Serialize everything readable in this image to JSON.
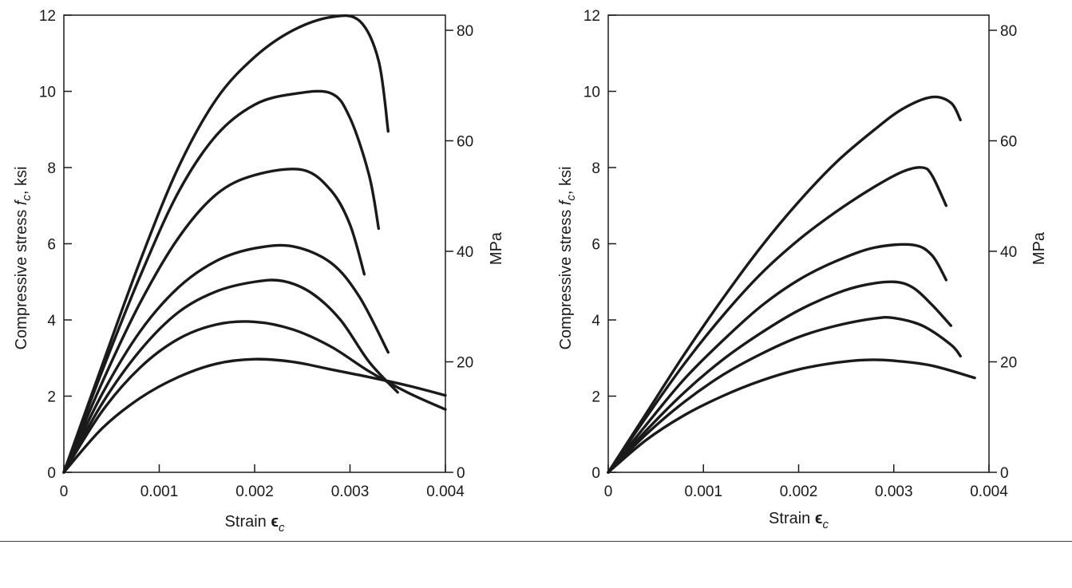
{
  "chart_data": [
    {
      "type": "line",
      "xlabel": "Strain",
      "xlabel_symbol": "ϵ",
      "xlabel_subscript": "c",
      "ylabel": "Compressive stress",
      "ylabel_symbol": "f",
      "ylabel_subscript": "c",
      "ylabel_unit": ", ksi",
      "y2label": "MPa",
      "xlim": [
        0,
        0.004
      ],
      "ylim": [
        0,
        12
      ],
      "y2lim": [
        0,
        82.74
      ],
      "xticks": [
        "0",
        "0.001",
        "0.002",
        "0.003",
        "0.004"
      ],
      "yticks": [
        "0",
        "2",
        "4",
        "6",
        "8",
        "10",
        "12"
      ],
      "y2ticks": [
        "0",
        "20",
        "40",
        "60",
        "80"
      ],
      "series": [
        {
          "points": [
            [
              0,
              0
            ],
            [
              0.0004,
              1.15
            ],
            [
              0.0008,
              1.95
            ],
            [
              0.0012,
              2.5
            ],
            [
              0.0016,
              2.85
            ],
            [
              0.002,
              2.97
            ],
            [
              0.0024,
              2.9
            ],
            [
              0.0028,
              2.7
            ],
            [
              0.0032,
              2.5
            ],
            [
              0.0036,
              2.28
            ],
            [
              0.004,
              2.02
            ]
          ]
        },
        {
          "points": [
            [
              0,
              0
            ],
            [
              0.0004,
              1.6
            ],
            [
              0.0008,
              2.75
            ],
            [
              0.0012,
              3.5
            ],
            [
              0.0016,
              3.88
            ],
            [
              0.002,
              3.95
            ],
            [
              0.0024,
              3.75
            ],
            [
              0.0028,
              3.3
            ],
            [
              0.0032,
              2.65
            ],
            [
              0.0036,
              2.1
            ],
            [
              0.004,
              1.65
            ]
          ]
        },
        {
          "points": [
            [
              0,
              0
            ],
            [
              0.0004,
              1.8
            ],
            [
              0.0008,
              3.2
            ],
            [
              0.0012,
              4.2
            ],
            [
              0.0016,
              4.75
            ],
            [
              0.002,
              5.0
            ],
            [
              0.0023,
              5.02
            ],
            [
              0.0026,
              4.7
            ],
            [
              0.0029,
              4.0
            ],
            [
              0.0032,
              2.9
            ],
            [
              0.0035,
              2.1
            ]
          ]
        },
        {
          "points": [
            [
              0,
              0
            ],
            [
              0.0004,
              2.05
            ],
            [
              0.0008,
              3.7
            ],
            [
              0.0012,
              4.85
            ],
            [
              0.0016,
              5.55
            ],
            [
              0.002,
              5.88
            ],
            [
              0.0024,
              5.93
            ],
            [
              0.0028,
              5.5
            ],
            [
              0.0031,
              4.6
            ],
            [
              0.0034,
              3.15
            ]
          ]
        },
        {
          "points": [
            [
              0,
              0
            ],
            [
              0.0004,
              2.35
            ],
            [
              0.0008,
              4.45
            ],
            [
              0.0012,
              6.15
            ],
            [
              0.0016,
              7.3
            ],
            [
              0.002,
              7.8
            ],
            [
              0.0025,
              7.94
            ],
            [
              0.0028,
              7.4
            ],
            [
              0.003,
              6.5
            ],
            [
              0.00315,
              5.2
            ]
          ]
        },
        {
          "points": [
            [
              0,
              0
            ],
            [
              0.0004,
              2.65
            ],
            [
              0.0008,
              5.15
            ],
            [
              0.0012,
              7.35
            ],
            [
              0.0016,
              8.85
            ],
            [
              0.002,
              9.65
            ],
            [
              0.0024,
              9.93
            ],
            [
              0.0028,
              9.95
            ],
            [
              0.003,
              9.3
            ],
            [
              0.0032,
              7.8
            ],
            [
              0.0033,
              6.4
            ]
          ]
        },
        {
          "points": [
            [
              0,
              0
            ],
            [
              0.0004,
              2.8
            ],
            [
              0.0008,
              5.55
            ],
            [
              0.0012,
              8.0
            ],
            [
              0.0016,
              9.8
            ],
            [
              0.002,
              10.9
            ],
            [
              0.0024,
              11.6
            ],
            [
              0.0028,
              11.95
            ],
            [
              0.0031,
              11.85
            ],
            [
              0.0033,
              10.8
            ],
            [
              0.0034,
              8.95
            ]
          ]
        }
      ]
    },
    {
      "type": "line",
      "xlabel": "Strain",
      "xlabel_symbol": "ϵ",
      "xlabel_subscript": "c",
      "ylabel": "Compressive stress",
      "ylabel_symbol": "f",
      "ylabel_subscript": "c",
      "ylabel_unit": ", ksi",
      "y2label": "MPa",
      "xlim": [
        0,
        0.004
      ],
      "ylim": [
        0,
        12
      ],
      "y2lim": [
        0,
        82.74
      ],
      "xticks": [
        "0",
        "0.001",
        "0.002",
        "0.003",
        "0.004"
      ],
      "yticks": [
        "0",
        "2",
        "4",
        "6",
        "8",
        "10",
        "12"
      ],
      "y2ticks": [
        "0",
        "20",
        "40",
        "60",
        "80"
      ],
      "series": [
        {
          "points": [
            [
              0,
              0
            ],
            [
              0.0004,
              0.85
            ],
            [
              0.0008,
              1.5
            ],
            [
              0.0012,
              2.0
            ],
            [
              0.0016,
              2.4
            ],
            [
              0.002,
              2.7
            ],
            [
              0.0024,
              2.88
            ],
            [
              0.0027,
              2.95
            ],
            [
              0.003,
              2.93
            ],
            [
              0.0034,
              2.8
            ],
            [
              0.00385,
              2.48
            ]
          ]
        },
        {
          "points": [
            [
              0,
              0
            ],
            [
              0.0004,
              1.0
            ],
            [
              0.0008,
              1.85
            ],
            [
              0.0012,
              2.55
            ],
            [
              0.0016,
              3.1
            ],
            [
              0.002,
              3.55
            ],
            [
              0.0024,
              3.85
            ],
            [
              0.0028,
              4.04
            ],
            [
              0.003,
              4.05
            ],
            [
              0.0033,
              3.85
            ],
            [
              0.0036,
              3.35
            ],
            [
              0.0037,
              3.05
            ]
          ]
        },
        {
          "points": [
            [
              0,
              0
            ],
            [
              0.0004,
              1.1
            ],
            [
              0.0008,
              2.1
            ],
            [
              0.0012,
              2.95
            ],
            [
              0.0016,
              3.65
            ],
            [
              0.002,
              4.25
            ],
            [
              0.0024,
              4.7
            ],
            [
              0.0027,
              4.92
            ],
            [
              0.003,
              5.0
            ],
            [
              0.0032,
              4.85
            ],
            [
              0.0034,
              4.4
            ],
            [
              0.0036,
              3.85
            ]
          ]
        },
        {
          "points": [
            [
              0,
              0
            ],
            [
              0.0004,
              1.25
            ],
            [
              0.0008,
              2.45
            ],
            [
              0.0012,
              3.45
            ],
            [
              0.0016,
              4.35
            ],
            [
              0.002,
              5.05
            ],
            [
              0.0024,
              5.55
            ],
            [
              0.0028,
              5.9
            ],
            [
              0.0032,
              5.97
            ],
            [
              0.0034,
              5.7
            ],
            [
              0.00355,
              5.05
            ]
          ]
        },
        {
          "points": [
            [
              0,
              0
            ],
            [
              0.0004,
              1.45
            ],
            [
              0.0008,
              2.85
            ],
            [
              0.0012,
              4.1
            ],
            [
              0.0016,
              5.2
            ],
            [
              0.002,
              6.1
            ],
            [
              0.0024,
              6.85
            ],
            [
              0.0028,
              7.5
            ],
            [
              0.0031,
              7.9
            ],
            [
              0.0033,
              8.0
            ],
            [
              0.0034,
              7.8
            ],
            [
              0.00355,
              7.0
            ]
          ]
        },
        {
          "points": [
            [
              0,
              0
            ],
            [
              0.0004,
              1.55
            ],
            [
              0.0008,
              3.1
            ],
            [
              0.0012,
              4.55
            ],
            [
              0.0016,
              5.9
            ],
            [
              0.002,
              7.1
            ],
            [
              0.0024,
              8.15
            ],
            [
              0.0028,
              9.0
            ],
            [
              0.0031,
              9.55
            ],
            [
              0.0034,
              9.85
            ],
            [
              0.0036,
              9.7
            ],
            [
              0.0037,
              9.25
            ]
          ]
        }
      ]
    }
  ]
}
